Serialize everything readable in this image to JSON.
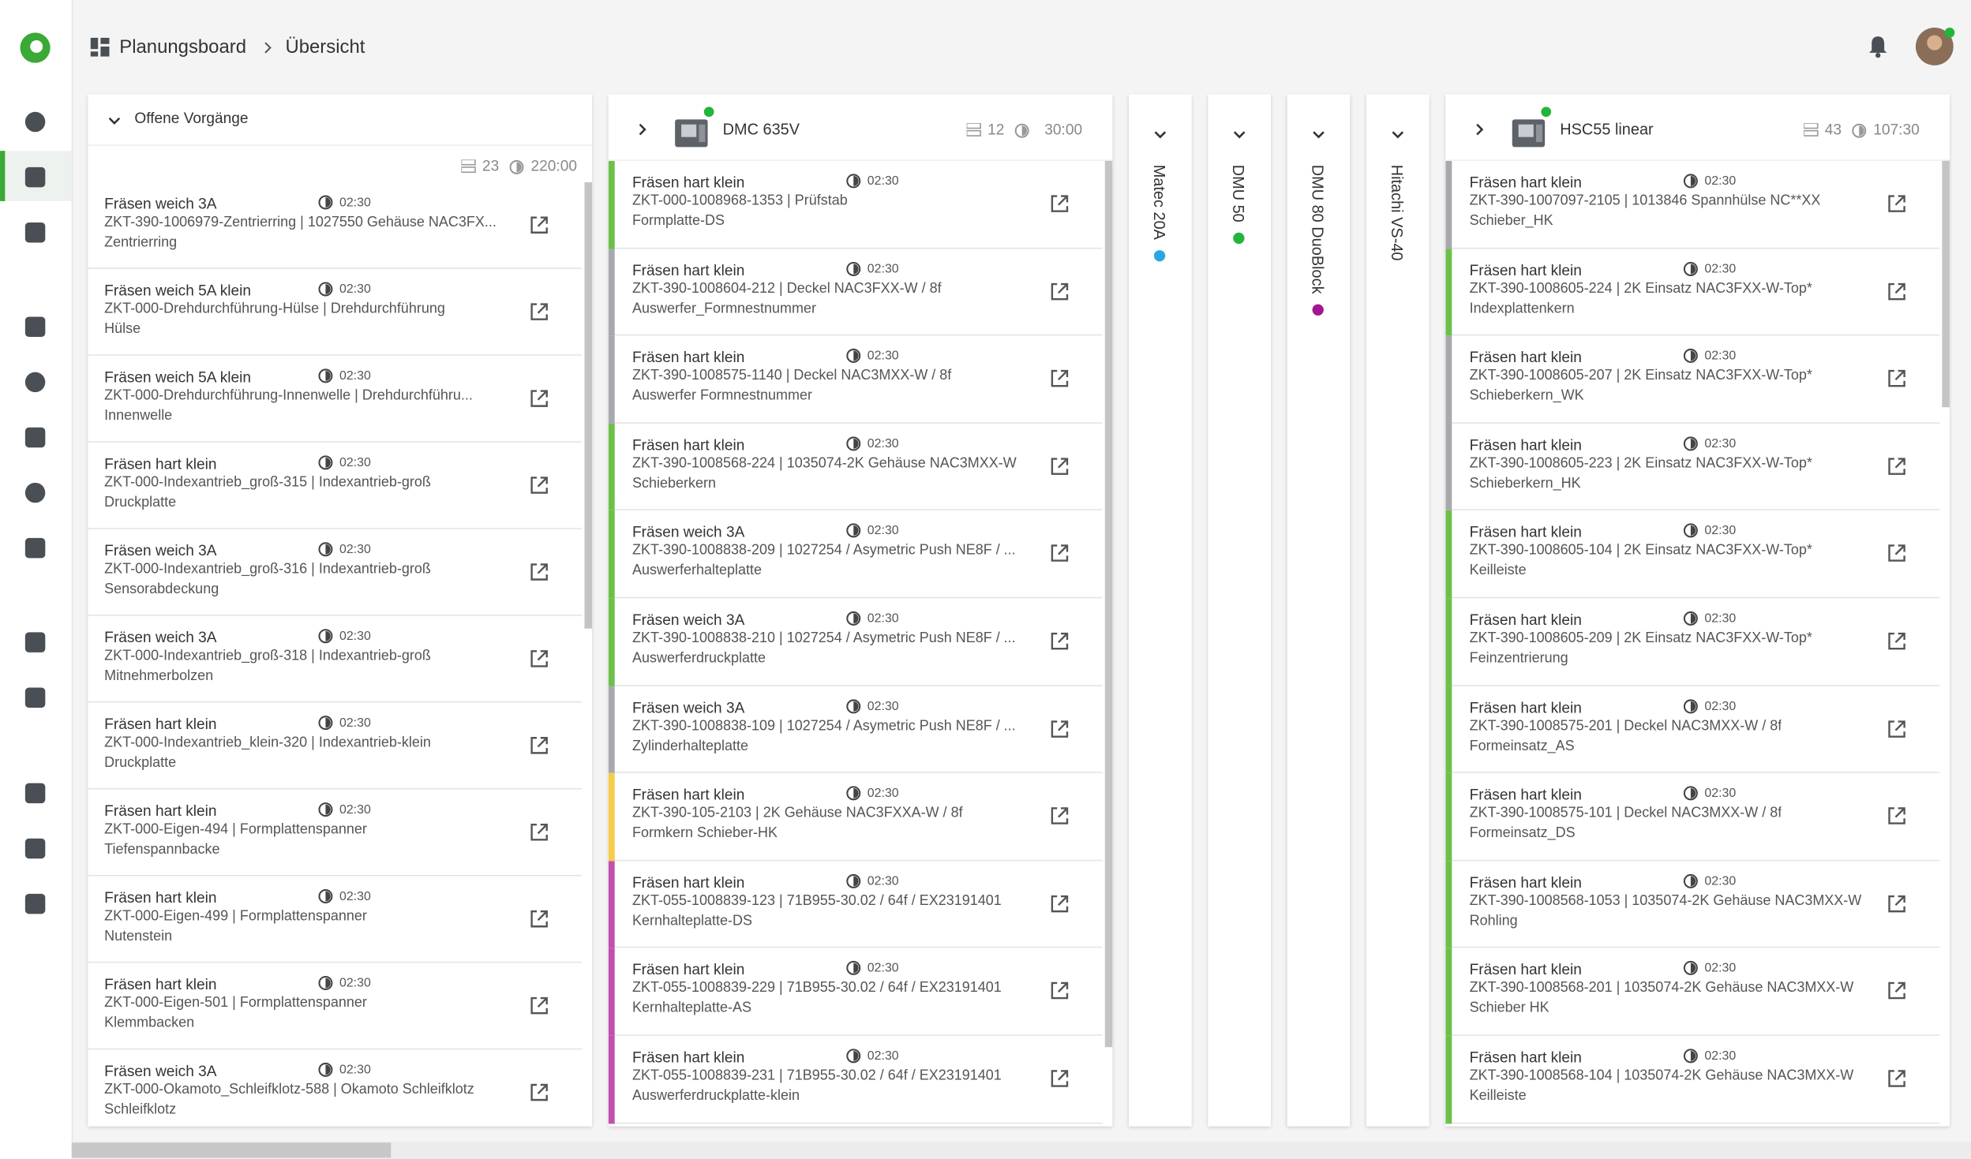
{
  "header": {
    "breadcrumb": [
      "Planungsboard",
      "Übersicht"
    ]
  },
  "backlog": {
    "title": "Offene Vorgänge",
    "count": 23,
    "time": "220:00",
    "items": [
      {
        "operation": "Fräsen weich 3A",
        "time": "02:30",
        "order": "ZKT-390-1006979-Zentrierring | 1027550 Gehäuse NAC3FX...",
        "part": "Zentrierring"
      },
      {
        "operation": "Fräsen weich 5A klein",
        "time": "02:30",
        "order": "ZKT-000-Drehdurchführung-Hülse | Drehdurchführung",
        "part": "Hülse"
      },
      {
        "operation": "Fräsen weich 5A klein",
        "time": "02:30",
        "order": "ZKT-000-Drehdurchführung-Innenwelle | Drehdurchführu...",
        "part": "Innenwelle"
      },
      {
        "operation": "Fräsen hart klein",
        "time": "02:30",
        "order": "ZKT-000-Indexantrieb_groß-315 | Indexantrieb-groß",
        "part": "Druckplatte"
      },
      {
        "operation": "Fräsen weich 3A",
        "time": "02:30",
        "order": "ZKT-000-Indexantrieb_groß-316 | Indexantrieb-groß",
        "part": "Sensorabdeckung"
      },
      {
        "operation": "Fräsen weich 3A",
        "time": "02:30",
        "order": "ZKT-000-Indexantrieb_groß-318 | Indexantrieb-groß",
        "part": "Mitnehmerbolzen"
      },
      {
        "operation": "Fräsen hart klein",
        "time": "02:30",
        "order": "ZKT-000-Indexantrieb_klein-320 | Indexantrieb-klein",
        "part": "Druckplatte"
      },
      {
        "operation": "Fräsen hart klein",
        "time": "02:30",
        "order": "ZKT-000-Eigen-494 | Formplattenspanner",
        "part": "Tiefenspannbacke"
      },
      {
        "operation": "Fräsen hart klein",
        "time": "02:30",
        "order": "ZKT-000-Eigen-499 | Formplattenspanner",
        "part": "Nutenstein"
      },
      {
        "operation": "Fräsen hart klein",
        "time": "02:30",
        "order": "ZKT-000-Eigen-501 | Formplattenspanner",
        "part": "Klemmbacken"
      },
      {
        "operation": "Fräsen weich 3A",
        "time": "02:30",
        "order": "ZKT-000-Okamoto_Schleifklotz-588 | Okamoto Schleifklotz",
        "part": "Schleifklotz"
      }
    ]
  },
  "lanes": [
    {
      "name": "DMC 635V",
      "collapsed": false,
      "status_color": "#22b53c",
      "count": 12,
      "time": "30:00",
      "items": [
        {
          "operation": "Fräsen hart klein",
          "time": "02:30",
          "order": "ZKT-000-1008968-1353 | Prüfstab",
          "part": "Formplatte-DS",
          "color": "#6cc04a"
        },
        {
          "operation": "Fräsen hart klein",
          "time": "02:30",
          "order": "ZKT-390-1008604-212 | Deckel NAC3FXX-W / 8f",
          "part": "Auswerfer_Formnestnummer",
          "color": "#a7a9ac"
        },
        {
          "operation": "Fräsen hart klein",
          "time": "02:30",
          "order": "ZKT-390-1008575-1140 | Deckel NAC3MXX-W / 8f",
          "part": "Auswerfer Formnestnummer",
          "color": "#a7a9ac"
        },
        {
          "operation": "Fräsen hart klein",
          "time": "02:30",
          "order": "ZKT-390-1008568-224 | 1035074-2K Gehäuse NAC3MXX-W",
          "part": "Schieberkern",
          "color": "#6cc04a"
        },
        {
          "operation": "Fräsen weich 3A",
          "time": "02:30",
          "order": "ZKT-390-1008838-209 | 1027254 / Asymetric Push NE8F / ...",
          "part": "Auswerferhalteplatte",
          "color": "#6cc04a"
        },
        {
          "operation": "Fräsen weich 3A",
          "time": "02:30",
          "order": "ZKT-390-1008838-210 | 1027254 / Asymetric Push NE8F / ...",
          "part": "Auswerferdruckplatte",
          "color": "#6cc04a"
        },
        {
          "operation": "Fräsen weich 3A",
          "time": "02:30",
          "order": "ZKT-390-1008838-109 | 1027254 / Asymetric Push NE8F / ...",
          "part": "Zylinderhalteplatte",
          "color": "#a7a9ac"
        },
        {
          "operation": "Fräsen hart klein",
          "time": "02:30",
          "order": "ZKT-390-105-2103 | 2K Gehäuse NAC3FXXA-W / 8f",
          "part": "Formkern Schieber-HK",
          "color": "#f5cd4a"
        },
        {
          "operation": "Fräsen hart klein",
          "time": "02:30",
          "order": "ZKT-055-1008839-123 | 71B955-30.02 / 64f / EX23191401",
          "part": "Kernhalteplatte-DS",
          "color": "#c24fae"
        },
        {
          "operation": "Fräsen hart klein",
          "time": "02:30",
          "order": "ZKT-055-1008839-229 | 71B955-30.02 / 64f / EX23191401",
          "part": "Kernhalteplatte-AS",
          "color": "#c24fae"
        },
        {
          "operation": "Fräsen hart klein",
          "time": "02:30",
          "order": "ZKT-055-1008839-231 | 71B955-30.02 / 64f / EX23191401",
          "part": "Auswerferdruckplatte-klein",
          "color": "#c24fae"
        }
      ]
    },
    {
      "name": "Matec 20A",
      "collapsed": true,
      "status_color": "#29a8e0"
    },
    {
      "name": "DMU 50",
      "collapsed": true,
      "status_color": "#22b53c"
    },
    {
      "name": "DMU 80 DuoBlock",
      "collapsed": true,
      "status_color": "#a3168f"
    },
    {
      "name": "Hitachi VS-40",
      "collapsed": true
    },
    {
      "name": "HSC55 linear",
      "collapsed": false,
      "status_color": "#22b53c",
      "count": 43,
      "time": "107:30",
      "items": [
        {
          "operation": "Fräsen hart klein",
          "time": "02:30",
          "order": "ZKT-390-1007097-2105 | 1013846 Spannhülse NC**XX",
          "part": "Schieber_HK",
          "color": "#a7a9ac"
        },
        {
          "operation": "Fräsen hart klein",
          "time": "02:30",
          "order": "ZKT-390-1008605-224 | 2K Einsatz NAC3FXX-W-Top*",
          "part": "Indexplattenkern",
          "color": "#6cc04a"
        },
        {
          "operation": "Fräsen hart klein",
          "time": "02:30",
          "order": "ZKT-390-1008605-207 | 2K Einsatz NAC3FXX-W-Top*",
          "part": "Schieberkern_WK",
          "color": "#a7a9ac"
        },
        {
          "operation": "Fräsen hart klein",
          "time": "02:30",
          "order": "ZKT-390-1008605-223 | 2K Einsatz NAC3FXX-W-Top*",
          "part": "Schieberkern_HK",
          "color": "#a7a9ac"
        },
        {
          "operation": "Fräsen hart klein",
          "time": "02:30",
          "order": "ZKT-390-1008605-104 | 2K Einsatz NAC3FXX-W-Top*",
          "part": "Keilleiste",
          "color": "#6cc04a"
        },
        {
          "operation": "Fräsen hart klein",
          "time": "02:30",
          "order": "ZKT-390-1008605-209 | 2K Einsatz NAC3FXX-W-Top*",
          "part": "Feinzentrierung",
          "color": "#6cc04a"
        },
        {
          "operation": "Fräsen hart klein",
          "time": "02:30",
          "order": "ZKT-390-1008575-201 | Deckel NAC3MXX-W / 8f",
          "part": "Formeinsatz_AS",
          "color": "#6cc04a"
        },
        {
          "operation": "Fräsen hart klein",
          "time": "02:30",
          "order": "ZKT-390-1008575-101 | Deckel NAC3MXX-W / 8f",
          "part": "Formeinsatz_DS",
          "color": "#6cc04a"
        },
        {
          "operation": "Fräsen hart klein",
          "time": "02:30",
          "order": "ZKT-390-1008568-1053 | 1035074-2K Gehäuse NAC3MXX-W",
          "part": "Rohling",
          "color": "#6cc04a"
        },
        {
          "operation": "Fräsen hart klein",
          "time": "02:30",
          "order": "ZKT-390-1008568-201 | 1035074-2K Gehäuse NAC3MXX-W",
          "part": "Schieber HK",
          "color": "#6cc04a"
        },
        {
          "operation": "Fräsen hart klein",
          "time": "02:30",
          "order": "ZKT-390-1008568-104 | 1035074-2K Gehäuse NAC3MXX-W",
          "part": "Keilleiste",
          "color": "#6cc04a"
        }
      ]
    }
  ]
}
